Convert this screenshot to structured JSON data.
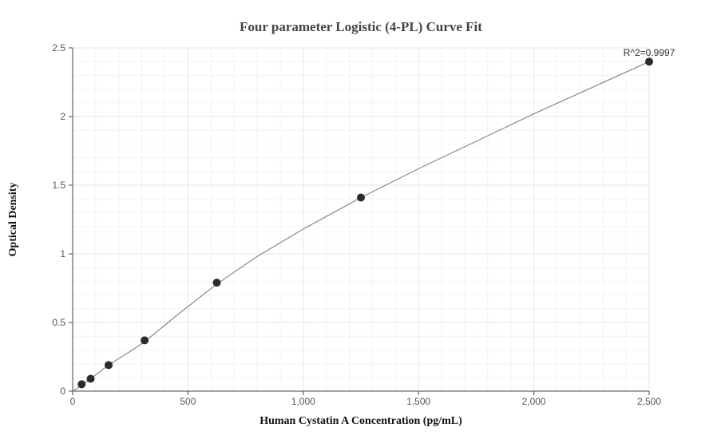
{
  "chart_data": {
    "type": "scatter",
    "title": "Four parameter Logistic (4-PL) Curve Fit",
    "xlabel": "Human Cystatin A Concentration (pg/mL)",
    "ylabel": "Optical Density",
    "xlim": [
      0,
      2500
    ],
    "ylim": [
      0,
      2.5
    ],
    "x_ticks": [
      0,
      500,
      1000,
      1500,
      2000,
      2500
    ],
    "x_tick_labels": [
      "0",
      "500",
      "1,000",
      "1,500",
      "2,000",
      "2,500"
    ],
    "y_ticks": [
      0,
      0.5,
      1,
      1.5,
      2,
      2.5
    ],
    "y_tick_labels": [
      "0",
      "0.5",
      "1",
      "1.5",
      "2",
      "2.5"
    ],
    "grid": true,
    "annotation": "R^2=0.9997",
    "series": [
      {
        "points": [
          {
            "x": 39,
            "y": 0.05
          },
          {
            "x": 78,
            "y": 0.09
          },
          {
            "x": 156,
            "y": 0.19
          },
          {
            "x": 312,
            "y": 0.37
          },
          {
            "x": 625,
            "y": 0.79
          },
          {
            "x": 1250,
            "y": 1.41
          },
          {
            "x": 2500,
            "y": 2.4
          }
        ],
        "color": "#2b2b2b"
      }
    ],
    "fit_curve": {
      "x": [
        0,
        39,
        78,
        156,
        250,
        312,
        450,
        625,
        800,
        1000,
        1250,
        1500,
        1750,
        2000,
        2250,
        2500
      ],
      "y": [
        0.0,
        0.04,
        0.09,
        0.19,
        0.29,
        0.36,
        0.55,
        0.78,
        0.98,
        1.18,
        1.41,
        1.62,
        1.82,
        2.02,
        2.21,
        2.4
      ],
      "color": "#888888"
    }
  }
}
